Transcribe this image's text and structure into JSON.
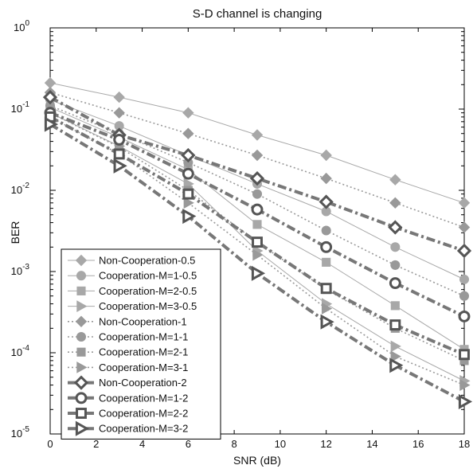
{
  "chart_data": {
    "type": "line",
    "title": "S-D channel is changing",
    "xlabel": "SNR (dB)",
    "ylabel": "BER",
    "xlim": [
      0,
      18
    ],
    "ylim": [
      1e-05,
      1
    ],
    "yscale": "log",
    "grid": false,
    "legend_position": "bottom-left",
    "x": [
      0,
      3,
      6,
      9,
      12,
      15,
      18
    ],
    "x_ticks": [
      "0",
      "2",
      "4",
      "6",
      "8",
      "10",
      "12",
      "14",
      "16",
      "18"
    ],
    "y_ticks": [
      {
        "base": "10",
        "exp": "0"
      },
      {
        "base": "10",
        "exp": "-1"
      },
      {
        "base": "10",
        "exp": "-2"
      },
      {
        "base": "10",
        "exp": "-3"
      },
      {
        "base": "10",
        "exp": "-4"
      },
      {
        "base": "10",
        "exp": "-5"
      }
    ],
    "series": [
      {
        "name": "Non-Cooperation-0.5",
        "marker": "diamond",
        "line": "solid-thin",
        "color": "#a8a8a8",
        "values": [
          0.21,
          0.14,
          0.09,
          0.048,
          0.027,
          0.0135,
          0.007
        ]
      },
      {
        "name": "Cooperation-M=1-0.5",
        "marker": "circle",
        "line": "solid-thin",
        "color": "#a8a8a8",
        "values": [
          0.13,
          0.062,
          0.027,
          0.012,
          0.0055,
          0.002,
          0.0008
        ]
      },
      {
        "name": "Cooperation-M=2-0.5",
        "marker": "square",
        "line": "solid-thin",
        "color": "#a8a8a8",
        "values": [
          0.105,
          0.045,
          0.018,
          0.0038,
          0.0013,
          0.00038,
          0.00011
        ]
      },
      {
        "name": "Cooperation-M=3-0.5",
        "marker": "triangle-right",
        "line": "solid-thin",
        "color": "#a8a8a8",
        "values": [
          0.09,
          0.035,
          0.012,
          0.0018,
          0.0004,
          0.00012,
          4.5e-05
        ]
      },
      {
        "name": "Non-Cooperation-1",
        "marker": "diamond",
        "line": "dotted",
        "color": "#999999",
        "values": [
          0.16,
          0.09,
          0.05,
          0.027,
          0.014,
          0.007,
          0.0035
        ]
      },
      {
        "name": "Cooperation-M=1-1",
        "marker": "circle",
        "line": "dotted",
        "color": "#999999",
        "values": [
          0.11,
          0.05,
          0.022,
          0.009,
          0.0032,
          0.0012,
          0.0005
        ]
      },
      {
        "name": "Cooperation-M=2-1",
        "marker": "square",
        "line": "dotted",
        "color": "#999999",
        "values": [
          0.09,
          0.034,
          0.01,
          0.0023,
          0.0006,
          0.0002,
          8e-05
        ]
      },
      {
        "name": "Cooperation-M=3-1",
        "marker": "triangle-right",
        "line": "dotted",
        "color": "#999999",
        "values": [
          0.08,
          0.028,
          0.007,
          0.0016,
          0.00035,
          9e-05,
          4e-05
        ]
      },
      {
        "name": "Non-Cooperation-2",
        "marker": "diamond",
        "line": "dash-dot-thick",
        "color": "#777777",
        "values": [
          0.14,
          0.048,
          0.027,
          0.014,
          0.0072,
          0.0035,
          0.0018
        ]
      },
      {
        "name": "Cooperation-M=1-2",
        "marker": "circle",
        "line": "dash-dot-thick",
        "color": "#777777",
        "values": [
          0.09,
          0.042,
          0.016,
          0.0058,
          0.002,
          0.00072,
          0.00028
        ]
      },
      {
        "name": "Cooperation-M=2-2",
        "marker": "square",
        "line": "dash-dot-thick",
        "color": "#777777",
        "values": [
          0.08,
          0.028,
          0.009,
          0.0023,
          0.00062,
          0.00022,
          9.5e-05
        ]
      },
      {
        "name": "Cooperation-M=3-2",
        "marker": "triangle-right",
        "line": "dash-dot-thick",
        "color": "#777777",
        "values": [
          0.065,
          0.02,
          0.0048,
          0.00095,
          0.00024,
          7e-05,
          2.5e-05
        ]
      }
    ]
  }
}
